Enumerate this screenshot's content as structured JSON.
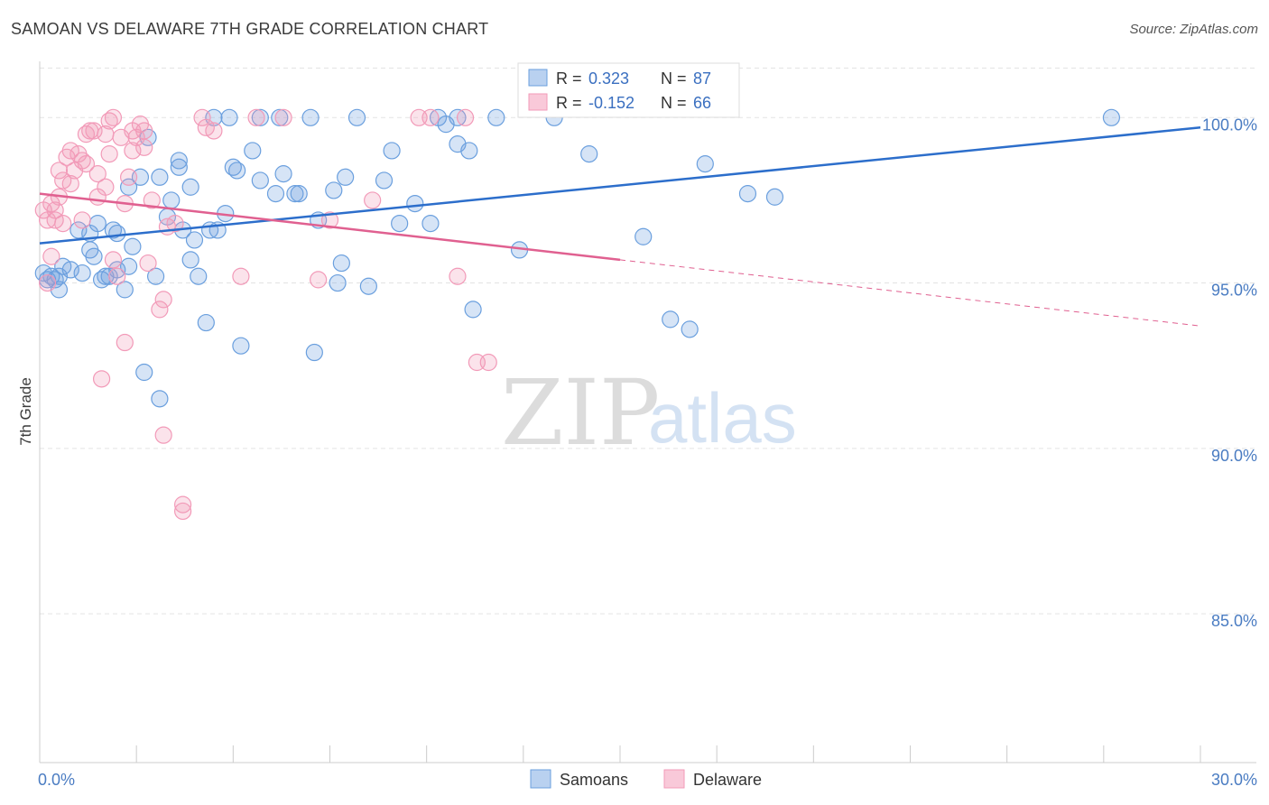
{
  "header": {
    "title": "SAMOAN VS DELAWARE 7TH GRADE CORRELATION CHART",
    "source": "Source: ZipAtlas.com"
  },
  "watermark": {
    "zip": "ZIP",
    "atlas": "atlas"
  },
  "colors": {
    "samoans": "#6a9fde",
    "samoans_line": "#2c6ecb",
    "delaware": "#f29ab8",
    "delaware_line": "#e06090",
    "grid": "#e3e3e3",
    "tick_label": "#4a7cc2"
  },
  "legend_box": {
    "rows": [
      {
        "r_label": "R = ",
        "r_value": " 0.323",
        "n_label": "N = ",
        "n_value": "87"
      },
      {
        "r_label": "R = ",
        "r_value": "-0.152",
        "n_label": "N = ",
        "n_value": "66"
      }
    ]
  },
  "chart_data": {
    "type": "scatter",
    "title": "SAMOAN VS DELAWARE 7TH GRADE CORRELATION CHART",
    "xlabel": "",
    "ylabel": "7th Grade",
    "xlim": [
      0,
      30
    ],
    "ylim": [
      80.5,
      101.7
    ],
    "x_ticks": [
      0,
      30
    ],
    "x_tick_labels": [
      "0.0%",
      "30.0%"
    ],
    "y_ticks": [
      85,
      90,
      95,
      100
    ],
    "y_tick_labels": [
      "85.0%",
      "90.0%",
      "95.0%",
      "100.0%"
    ],
    "grid": "horizontal dashed",
    "legend_position": "bottom-center",
    "series": [
      {
        "name": "Samoans",
        "r": 0.323,
        "n": 87,
        "trend": {
          "x": [
            0,
            30
          ],
          "y": [
            96.2,
            99.7
          ],
          "style": "solid"
        },
        "points": [
          [
            0.1,
            95.3
          ],
          [
            0.2,
            95.1
          ],
          [
            0.3,
            95.2
          ],
          [
            0.5,
            95.2
          ],
          [
            0.5,
            94.8
          ],
          [
            0.6,
            95.5
          ],
          [
            0.8,
            95.4
          ],
          [
            1.1,
            95.3
          ],
          [
            1.0,
            96.6
          ],
          [
            1.3,
            96.5
          ],
          [
            1.3,
            96.0
          ],
          [
            1.4,
            95.8
          ],
          [
            1.5,
            96.8
          ],
          [
            1.6,
            95.1
          ],
          [
            1.8,
            95.2
          ],
          [
            1.9,
            96.6
          ],
          [
            2.0,
            96.5
          ],
          [
            2.0,
            95.4
          ],
          [
            2.2,
            94.8
          ],
          [
            2.3,
            95.5
          ],
          [
            2.4,
            96.1
          ],
          [
            2.3,
            97.9
          ],
          [
            2.6,
            98.2
          ],
          [
            2.7,
            92.3
          ],
          [
            2.8,
            99.4
          ],
          [
            3.0,
            95.2
          ],
          [
            3.1,
            98.2
          ],
          [
            3.1,
            91.5
          ],
          [
            3.3,
            97.0
          ],
          [
            3.4,
            97.5
          ],
          [
            3.6,
            98.5
          ],
          [
            3.6,
            98.7
          ],
          [
            3.7,
            96.6
          ],
          [
            3.9,
            95.7
          ],
          [
            3.9,
            97.9
          ],
          [
            4.0,
            96.3
          ],
          [
            4.1,
            95.2
          ],
          [
            4.3,
            93.8
          ],
          [
            4.4,
            96.6
          ],
          [
            4.5,
            100.0
          ],
          [
            4.6,
            96.6
          ],
          [
            4.8,
            97.1
          ],
          [
            4.9,
            100.0
          ],
          [
            5.0,
            98.5
          ],
          [
            5.1,
            98.4
          ],
          [
            5.2,
            93.1
          ],
          [
            5.5,
            99.0
          ],
          [
            5.7,
            98.1
          ],
          [
            6.1,
            97.7
          ],
          [
            6.2,
            100.0
          ],
          [
            6.3,
            98.3
          ],
          [
            6.6,
            97.7
          ],
          [
            6.7,
            97.7
          ],
          [
            7.0,
            100.0
          ],
          [
            7.1,
            92.9
          ],
          [
            7.2,
            96.9
          ],
          [
            7.6,
            97.8
          ],
          [
            7.7,
            95.0
          ],
          [
            7.8,
            95.6
          ],
          [
            7.9,
            98.2
          ],
          [
            8.2,
            100.0
          ],
          [
            8.5,
            94.9
          ],
          [
            8.9,
            98.1
          ],
          [
            9.1,
            99.0
          ],
          [
            9.3,
            96.8
          ],
          [
            9.7,
            97.4
          ],
          [
            10.1,
            96.8
          ],
          [
            10.3,
            100.0
          ],
          [
            10.5,
            99.8
          ],
          [
            10.8,
            100.0
          ],
          [
            10.8,
            99.2
          ],
          [
            11.1,
            99.0
          ],
          [
            11.2,
            94.2
          ],
          [
            11.8,
            100.0
          ],
          [
            12.4,
            96.0
          ],
          [
            13.3,
            100.0
          ],
          [
            14.2,
            98.9
          ],
          [
            15.6,
            96.4
          ],
          [
            16.3,
            93.9
          ],
          [
            16.8,
            93.6
          ],
          [
            17.2,
            98.6
          ],
          [
            18.3,
            97.7
          ],
          [
            19.0,
            97.6
          ],
          [
            27.7,
            100.0
          ],
          [
            0.4,
            95.1
          ],
          [
            1.7,
            95.2
          ],
          [
            5.7,
            100.0
          ]
        ]
      },
      {
        "name": "Delaware",
        "r": -0.152,
        "n": 66,
        "trend": {
          "x": [
            0,
            15.0,
            30
          ],
          "y": [
            97.7,
            95.7,
            93.7
          ],
          "style": "solid then dashed after x=15"
        },
        "points": [
          [
            0.1,
            97.2
          ],
          [
            0.2,
            96.9
          ],
          [
            0.3,
            97.4
          ],
          [
            0.3,
            95.8
          ],
          [
            0.4,
            97.2
          ],
          [
            0.4,
            96.9
          ],
          [
            0.5,
            98.4
          ],
          [
            0.5,
            97.6
          ],
          [
            0.6,
            98.1
          ],
          [
            0.6,
            96.8
          ],
          [
            0.7,
            98.8
          ],
          [
            0.8,
            98.0
          ],
          [
            0.8,
            99.0
          ],
          [
            0.9,
            98.4
          ],
          [
            1.0,
            98.9
          ],
          [
            1.1,
            98.7
          ],
          [
            1.1,
            96.9
          ],
          [
            1.2,
            98.6
          ],
          [
            1.2,
            99.5
          ],
          [
            1.3,
            99.6
          ],
          [
            1.4,
            99.6
          ],
          [
            1.5,
            97.6
          ],
          [
            1.5,
            98.3
          ],
          [
            1.6,
            92.1
          ],
          [
            1.7,
            97.9
          ],
          [
            1.7,
            99.5
          ],
          [
            1.8,
            99.9
          ],
          [
            1.8,
            98.9
          ],
          [
            1.9,
            100.0
          ],
          [
            1.9,
            95.7
          ],
          [
            2.0,
            95.2
          ],
          [
            2.1,
            99.4
          ],
          [
            2.2,
            97.4
          ],
          [
            2.2,
            93.2
          ],
          [
            2.3,
            98.2
          ],
          [
            2.4,
            99.6
          ],
          [
            2.4,
            99.0
          ],
          [
            2.5,
            99.4
          ],
          [
            2.6,
            99.8
          ],
          [
            2.7,
            99.6
          ],
          [
            2.7,
            99.1
          ],
          [
            2.8,
            95.6
          ],
          [
            2.9,
            97.5
          ],
          [
            3.1,
            94.2
          ],
          [
            3.2,
            94.5
          ],
          [
            3.2,
            90.4
          ],
          [
            3.3,
            96.7
          ],
          [
            3.5,
            96.8
          ],
          [
            3.7,
            88.3
          ],
          [
            3.7,
            88.1
          ],
          [
            4.2,
            100.0
          ],
          [
            4.3,
            99.7
          ],
          [
            4.5,
            99.6
          ],
          [
            5.2,
            95.2
          ],
          [
            5.6,
            100.0
          ],
          [
            6.3,
            100.0
          ],
          [
            7.2,
            95.1
          ],
          [
            7.5,
            96.9
          ],
          [
            8.6,
            97.5
          ],
          [
            9.8,
            100.0
          ],
          [
            10.1,
            100.0
          ],
          [
            11.0,
            100.0
          ],
          [
            10.8,
            95.2
          ],
          [
            11.3,
            92.6
          ],
          [
            11.6,
            92.6
          ],
          [
            0.2,
            95.0
          ]
        ]
      }
    ]
  },
  "bottom_legend": [
    {
      "label": "Samoans"
    },
    {
      "label": "Delaware"
    }
  ]
}
